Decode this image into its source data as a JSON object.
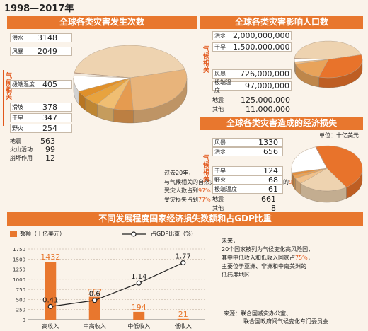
{
  "headline": "1998—2017年",
  "frequency": {
    "title": "全球各类灾害发生次数",
    "climate_label": "气候相关",
    "rows": [
      {
        "name": "洪水",
        "value": "3148"
      },
      {
        "name": "风暴",
        "value": "2049"
      },
      {
        "name": "极端温度",
        "value": "405"
      },
      {
        "name": "滑坡",
        "value": "378"
      },
      {
        "name": "干旱",
        "value": "347"
      },
      {
        "name": "野火",
        "value": "254"
      },
      {
        "name": "地震",
        "value": "563"
      },
      {
        "name": "火山活动",
        "value": "99"
      },
      {
        "name": "崩坏作用",
        "value": "12"
      }
    ],
    "facts": [
      "过去20年，",
      "与气候相关的自然灾害发生次数占到灾害总次数的",
      "91%",
      "受灾人数占到",
      "97%",
      "受灾损失占到",
      "77%"
    ]
  },
  "affected": {
    "title": "全球各类灾害影响人口数",
    "climate_label": "气候相关",
    "rows": [
      {
        "name": "洪水",
        "value": "2,000,000,000"
      },
      {
        "name": "干旱",
        "value": "1,500,000,000"
      },
      {
        "name": "风暴",
        "value": "726,000,000"
      },
      {
        "name": "极端温度",
        "value": "97,000,000"
      },
      {
        "name": "地震",
        "value": "125,000,000"
      },
      {
        "name": "其他",
        "value": "11,000,000"
      }
    ]
  },
  "losses": {
    "title": "全球各类灾害造成的经济损失",
    "unit": "单位：十亿美元",
    "climate_label": "气候相关",
    "rows": [
      {
        "name": "风暴",
        "value": "1330"
      },
      {
        "name": "洪水",
        "value": "656"
      },
      {
        "name": "干旱",
        "value": "124"
      },
      {
        "name": "野火",
        "value": "68"
      },
      {
        "name": "极端温度",
        "value": "61"
      },
      {
        "name": "地震",
        "value": "661"
      },
      {
        "name": "其他",
        "value": "8"
      }
    ]
  },
  "bottom": {
    "title": "不同发展程度国家经济损失数额和占GDP比重",
    "legend_bar": "数额（十亿美元）",
    "legend_line": "占GDP比重（%）",
    "notes_title": "未来，",
    "notes": [
      "20个国家被列为气候变化高风险国，",
      "其中中低收入和低收入国家占",
      "75%",
      "，",
      "主要位于亚洲、非洲和中南美洲的",
      "低纬度地区"
    ],
    "source": [
      "来源：联合国减灾办公室、",
      "联合国政府间气候变化专门委员会"
    ]
  },
  "chart_data": [
    {
      "type": "pie",
      "title": "全球各类灾害发生次数",
      "labels": [
        "洪水",
        "风暴",
        "极端温度",
        "滑坡",
        "干旱",
        "野火",
        "地震",
        "火山活动",
        "崩坏作用"
      ],
      "values": [
        3148,
        2049,
        405,
        378,
        347,
        254,
        563,
        99,
        12
      ],
      "colors": [
        "#eed3b0",
        "#e8b47b",
        "#e59b50",
        "#f0be72",
        "#e8a33e",
        "#e0902a",
        "#ffffff",
        "#f2e9dd",
        "#d62a10"
      ]
    },
    {
      "type": "pie",
      "title": "全球各类灾害影响人口数",
      "labels": [
        "洪水",
        "干旱",
        "风暴",
        "极端温度",
        "地震",
        "其他"
      ],
      "values": [
        2000000000,
        1500000000,
        726000000,
        97000000,
        125000000,
        11000000
      ],
      "colors": [
        "#eed3b0",
        "#e8732b",
        "#e8a35a",
        "#f0c08a",
        "#ffffff",
        "#d62a10"
      ]
    },
    {
      "type": "pie",
      "title": "全球各类灾害造成的经济损失",
      "labels": [
        "风暴",
        "洪水",
        "干旱",
        "野火",
        "极端温度",
        "地震",
        "其他"
      ],
      "values": [
        1330,
        656,
        124,
        68,
        61,
        661,
        8
      ],
      "colors": [
        "#e8732b",
        "#eed3b0",
        "#f0c08a",
        "#e8a35a",
        "#e29040",
        "#ffffff",
        "#d62a10"
      ]
    },
    {
      "type": "bar",
      "title": "不同发展程度国家经济损失数额和占GDP比重",
      "categories": [
        "高收入",
        "中高收入",
        "中低收入",
        "低收入"
      ],
      "series": [
        {
          "name": "数额（十亿美元）",
          "type": "bar",
          "values": [
            1432,
            567,
            194,
            21
          ],
          "color": "#e8772e"
        },
        {
          "name": "占GDP比重（%）",
          "type": "line",
          "values": [
            0.41,
            0.6,
            1.14,
            1.77
          ],
          "color": "#222222"
        }
      ],
      "y_ticks": [
        0,
        250,
        500,
        750,
        1000,
        1250,
        1500,
        1750
      ],
      "ylim": [
        0,
        1750
      ],
      "y2lim": [
        0,
        2.2
      ],
      "grid": true,
      "legend": "top"
    }
  ]
}
